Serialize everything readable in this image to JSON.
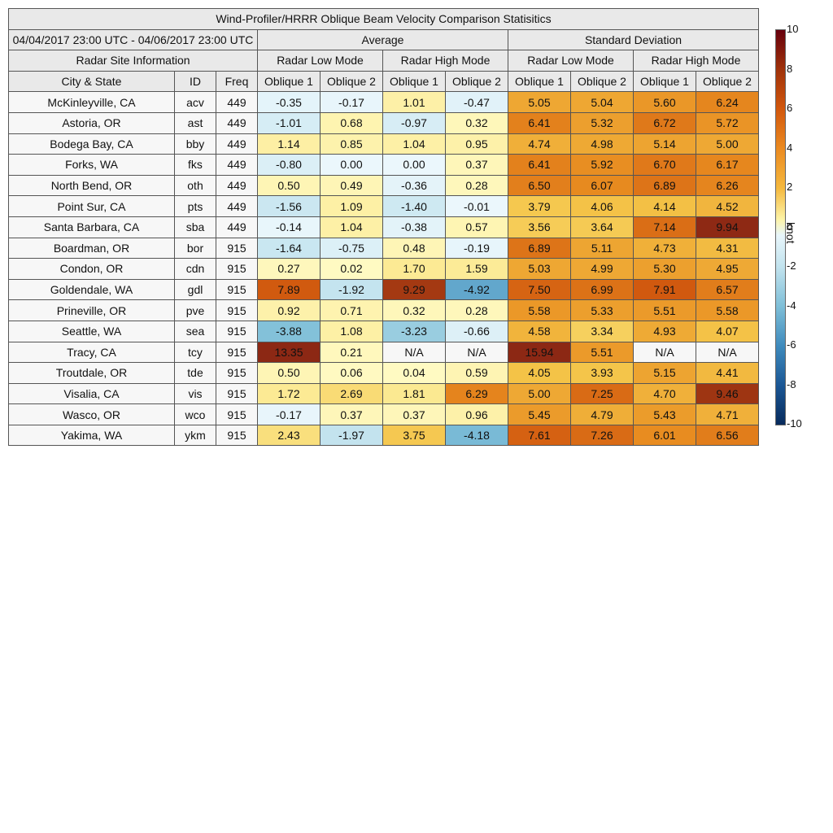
{
  "title": "Wind-Profiler/HRRR Oblique Beam Velocity Comparison Statisitics",
  "date_range": "04/04/2017 23:00 UTC - 04/06/2017 23:00 UTC",
  "group_average": "Average",
  "group_stddev": "Standard Deviation",
  "site_info_label": "Radar Site Information",
  "low_mode": "Radar Low Mode",
  "high_mode": "Radar High Mode",
  "col_city": "City & State",
  "col_id": "ID",
  "col_freq": "Freq",
  "oblique1": "Oblique 1",
  "oblique2": "Oblique 2",
  "colorbar": {
    "unit": "knot",
    "ticks": [
      "10",
      "8",
      "6",
      "4",
      "2",
      "0",
      "-2",
      "-4",
      "-6",
      "-8",
      "-10"
    ],
    "range": [
      -10,
      10
    ]
  },
  "chart_data": {
    "type": "table",
    "rows": [
      {
        "city": "McKinleyville, CA",
        "id": "acv",
        "freq": "449",
        "avg": [
          "-0.35",
          "-0.17",
          "1.01",
          "-0.47"
        ],
        "std": [
          "5.05",
          "5.04",
          "5.60",
          "6.24"
        ]
      },
      {
        "city": "Astoria, OR",
        "id": "ast",
        "freq": "449",
        "avg": [
          "-1.01",
          "0.68",
          "-0.97",
          "0.32"
        ],
        "std": [
          "6.41",
          "5.32",
          "6.72",
          "5.72"
        ]
      },
      {
        "city": "Bodega Bay, CA",
        "id": "bby",
        "freq": "449",
        "avg": [
          "1.14",
          "0.85",
          "1.04",
          "0.95"
        ],
        "std": [
          "4.74",
          "4.98",
          "5.14",
          "5.00"
        ]
      },
      {
        "city": "Forks, WA",
        "id": "fks",
        "freq": "449",
        "avg": [
          "-0.80",
          "0.00",
          "0.00",
          "0.37"
        ],
        "std": [
          "6.41",
          "5.92",
          "6.70",
          "6.17"
        ]
      },
      {
        "city": "North Bend, OR",
        "id": "oth",
        "freq": "449",
        "avg": [
          "0.50",
          "0.49",
          "-0.36",
          "0.28"
        ],
        "std": [
          "6.50",
          "6.07",
          "6.89",
          "6.26"
        ]
      },
      {
        "city": "Point Sur, CA",
        "id": "pts",
        "freq": "449",
        "avg": [
          "-1.56",
          "1.09",
          "-1.40",
          "-0.01"
        ],
        "std": [
          "3.79",
          "4.06",
          "4.14",
          "4.52"
        ]
      },
      {
        "city": "Santa Barbara, CA",
        "id": "sba",
        "freq": "449",
        "avg": [
          "-0.14",
          "1.04",
          "-0.38",
          "0.57"
        ],
        "std": [
          "3.56",
          "3.64",
          "7.14",
          "9.94"
        ]
      },
      {
        "city": "Boardman, OR",
        "id": "bor",
        "freq": "915",
        "avg": [
          "-1.64",
          "-0.75",
          "0.48",
          "-0.19"
        ],
        "std": [
          "6.89",
          "5.11",
          "4.73",
          "4.31"
        ]
      },
      {
        "city": "Condon, OR",
        "id": "cdn",
        "freq": "915",
        "avg": [
          "0.27",
          "0.02",
          "1.70",
          "1.59"
        ],
        "std": [
          "5.03",
          "4.99",
          "5.30",
          "4.95"
        ]
      },
      {
        "city": "Goldendale, WA",
        "id": "gdl",
        "freq": "915",
        "avg": [
          "7.89",
          "-1.92",
          "9.29",
          "-4.92"
        ],
        "std": [
          "7.50",
          "6.99",
          "7.91",
          "6.57"
        ]
      },
      {
        "city": "Prineville, OR",
        "id": "pve",
        "freq": "915",
        "avg": [
          "0.92",
          "0.71",
          "0.32",
          "0.28"
        ],
        "std": [
          "5.58",
          "5.33",
          "5.51",
          "5.58"
        ]
      },
      {
        "city": "Seattle, WA",
        "id": "sea",
        "freq": "915",
        "avg": [
          "-3.88",
          "1.08",
          "-3.23",
          "-0.66"
        ],
        "std": [
          "4.58",
          "3.34",
          "4.93",
          "4.07"
        ]
      },
      {
        "city": "Tracy, CA",
        "id": "tcy",
        "freq": "915",
        "avg": [
          "13.35",
          "0.21",
          "N/A",
          "N/A"
        ],
        "std": [
          "15.94",
          "5.51",
          "N/A",
          "N/A"
        ]
      },
      {
        "city": "Troutdale, OR",
        "id": "tde",
        "freq": "915",
        "avg": [
          "0.50",
          "0.06",
          "0.04",
          "0.59"
        ],
        "std": [
          "4.05",
          "3.93",
          "5.15",
          "4.41"
        ]
      },
      {
        "city": "Visalia, CA",
        "id": "vis",
        "freq": "915",
        "avg": [
          "1.72",
          "2.69",
          "1.81",
          "6.29"
        ],
        "std": [
          "5.00",
          "7.25",
          "4.70",
          "9.46"
        ]
      },
      {
        "city": "Wasco, OR",
        "id": "wco",
        "freq": "915",
        "avg": [
          "-0.17",
          "0.37",
          "0.37",
          "0.96"
        ],
        "std": [
          "5.45",
          "4.79",
          "5.43",
          "4.71"
        ]
      },
      {
        "city": "Yakima, WA",
        "id": "ykm",
        "freq": "915",
        "avg": [
          "2.43",
          "-1.97",
          "3.75",
          "-4.18"
        ],
        "std": [
          "7.61",
          "7.26",
          "6.01",
          "6.56"
        ]
      }
    ]
  }
}
